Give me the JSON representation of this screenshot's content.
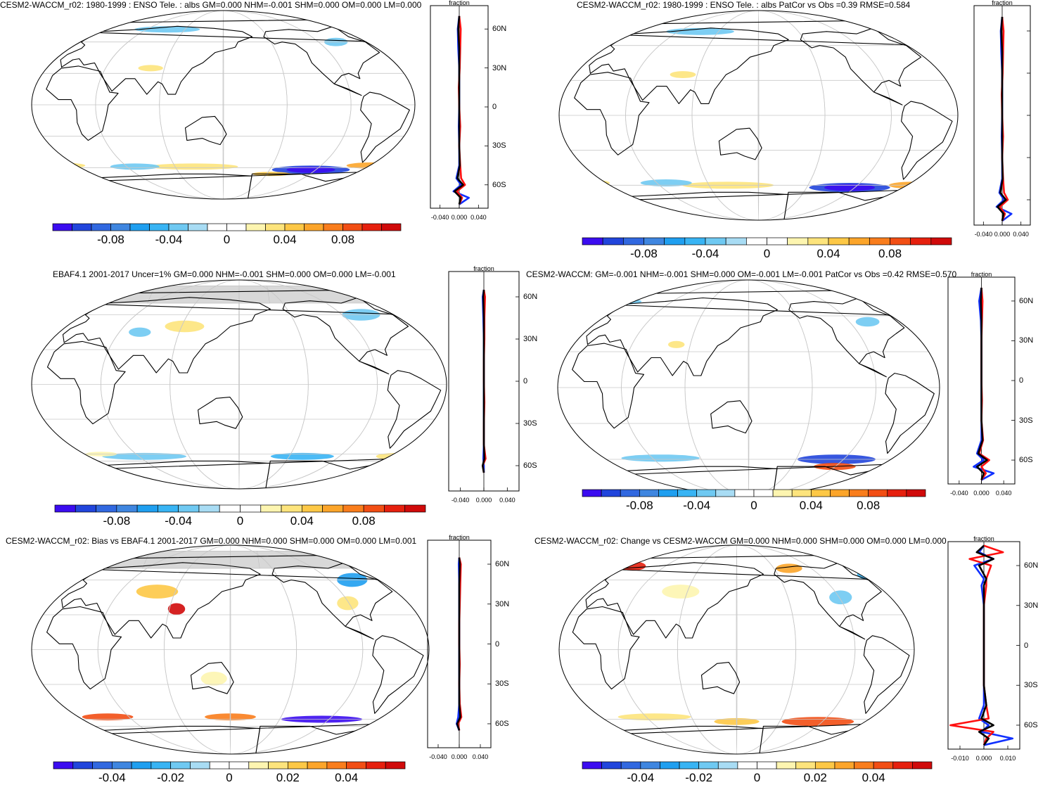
{
  "colors": {
    "palette": [
      "#3b0cf0",
      "#2145dc",
      "#3168e0",
      "#3f86e0",
      "#1f9ff0",
      "#38b4f4",
      "#6fc9f2",
      "#a8dcf4",
      "#ffffff",
      "#ffffff",
      "#fdf5b0",
      "#fde47c",
      "#fdc846",
      "#fca52a",
      "#f97d1c",
      "#f24e14",
      "#e6200e",
      "#d00a0a"
    ],
    "land_outline": "#000000",
    "graticule": "#c8c8c8",
    "mask_gray": "#d8d8d8",
    "line_black": "#000000",
    "line_red": "#ff1010",
    "line_blue": "#1030ff"
  },
  "panels": [
    {
      "id": "p1",
      "title": "CESM2-WACCM_r02: 1980-1999 : ENSO Tele. : albs GM=0.000 NHM=-0.001 SHM=0.000 OM=0.000 LM=0.000",
      "colorbar_labels": [
        "-0.08",
        "-0.04",
        "0",
        "0.04",
        "0.08"
      ],
      "zonal": {
        "title": "fraction",
        "xticks": [
          "-0.040",
          "0.000",
          "0.040"
        ],
        "lat_labels": [
          "60N",
          "30N",
          "0",
          "30S",
          "60S"
        ]
      }
    },
    {
      "id": "p2",
      "title": "CESM2-WACCM_r02: 1980-1999 : ENSO Tele. : albs PatCor vs Obs =0.39 RMSE=0.584",
      "colorbar_labels": [
        "-0.08",
        "-0.04",
        "0",
        "0.04",
        "0.08"
      ],
      "zonal": {
        "title": "fraction",
        "xticks": [
          "-0.040",
          "0.000",
          "0.040"
        ],
        "lat_labels": []
      }
    },
    {
      "id": "p3",
      "title": "EBAF4.1 2001-2017 Uncer=1% GM=0.000 NHM=-0.001 SHM=0.000 OM=0.000 LM=-0.001",
      "colorbar_labels": [
        "-0.08",
        "-0.04",
        "0",
        "0.04",
        "0.08"
      ],
      "zonal": {
        "title": "fraction",
        "xticks": [
          "-0.040",
          "0.000",
          "0.040"
        ],
        "lat_labels": [
          "60N",
          "30N",
          "0",
          "30S",
          "60S"
        ]
      }
    },
    {
      "id": "p4",
      "title": "CESM2-WACCM: GM=-0.001 NHM=-0.001 SHM=0.000 OM=-0.001 LM=-0.001 PatCor vs Obs =0.42 RMSE=0.570",
      "colorbar_labels": [
        "-0.08",
        "-0.04",
        "0",
        "0.04",
        "0.08"
      ],
      "zonal": {
        "title": "fraction",
        "xticks": [
          "-0.040",
          "0.000",
          "0.040"
        ],
        "lat_labels": [
          "60N",
          "30N",
          "0",
          "30S",
          "60S"
        ]
      }
    },
    {
      "id": "p5",
      "title": "CESM2-WACCM_r02: Bias vs EBAF4.1 2001-2017 GM=0.000 NHM=0.000 SHM=0.000 OM=0.000 LM=0.001",
      "colorbar_labels": [
        "-0.04",
        "-0.02",
        "0",
        "0.02",
        "0.04"
      ],
      "zonal": {
        "title": "fraction",
        "xticks": [
          "-0.040",
          "0.000",
          "0.040"
        ],
        "lat_labels": [
          "60N",
          "30N",
          "0",
          "30S",
          "60S"
        ]
      }
    },
    {
      "id": "p6",
      "title": "CESM2-WACCM_r02: Change vs CESM2-WACCM GM=0.000 NHM=0.000 SHM=0.000 OM=0.000 LM=0.000",
      "colorbar_labels": [
        "-0.04",
        "-0.02",
        "0",
        "0.02",
        "0.04"
      ],
      "zonal": {
        "title": "fraction",
        "xticks": [
          "-0.010",
          "0.000",
          "0.010"
        ],
        "lat_labels": [
          "60N",
          "30N",
          "0",
          "30S",
          "60S"
        ]
      }
    }
  ],
  "chart_data": [
    {
      "type": "heatmap",
      "title": "CESM2-WACCM_r02: 1980-1999 : ENSO Tele. : albs",
      "variable": "albs",
      "units": "fraction",
      "colorbar_range": [
        -0.1,
        0.1
      ],
      "colorbar_ticks": [
        -0.08,
        -0.04,
        0,
        0.04,
        0.08
      ],
      "anomalies": [
        {
          "lat": -62,
          "lon": -120,
          "value": -0.09
        },
        {
          "lat": -60,
          "lon": -60,
          "value": 0.04
        },
        {
          "lat": -58,
          "lon": 120,
          "value": 0.03
        },
        {
          "lat": 72,
          "lon": 90,
          "value": -0.03
        },
        {
          "lat": 35,
          "lon": 80,
          "value": 0.02
        },
        {
          "lat": 65,
          "lon": -30,
          "value": -0.02
        }
      ],
      "zonal_mean": {
        "xlim": [
          -0.06,
          0.06
        ],
        "lat": [
          70,
          60,
          45,
          30,
          15,
          0,
          -15,
          -30,
          -45,
          -55,
          -60,
          -65,
          -70,
          -75
        ],
        "black": [
          0.0,
          -0.002,
          0.0,
          0.0,
          0.0,
          0.0,
          0.0,
          0.0,
          0.001,
          -0.004,
          0.008,
          -0.01,
          0.003,
          0.0
        ],
        "red": [
          0.0,
          0.003,
          0.002,
          0.001,
          -0.001,
          0.0,
          0.002,
          0.0,
          0.002,
          0.004,
          0.012,
          -0.005,
          0.006,
          0.0
        ],
        "blue": [
          0.0,
          -0.003,
          -0.002,
          0.0,
          0.0,
          0.0,
          -0.001,
          0.0,
          0.0,
          -0.006,
          0.004,
          -0.012,
          0.02,
          0.0
        ]
      }
    },
    {
      "type": "heatmap",
      "title": "CESM2-WACCM_r02: 1980-1999 : ENSO Tele. : albs",
      "pattern_correlation": 0.39,
      "rmse": 0.584,
      "colorbar_range": [
        -0.1,
        0.1
      ],
      "colorbar_ticks": [
        -0.08,
        -0.04,
        0,
        0.04,
        0.08
      ],
      "anomalies": [
        {
          "lat": -62,
          "lon": -120,
          "value": -0.09
        },
        {
          "lat": -60,
          "lon": -60,
          "value": 0.04
        },
        {
          "lat": -58,
          "lon": 120,
          "value": 0.03
        },
        {
          "lat": 72,
          "lon": 90,
          "value": -0.03
        },
        {
          "lat": 35,
          "lon": 80,
          "value": 0.02
        }
      ],
      "zonal_mean": {
        "xlim": [
          -0.06,
          0.06
        ],
        "lat": [
          70,
          60,
          45,
          30,
          15,
          0,
          -15,
          -30,
          -45,
          -55,
          -60,
          -65,
          -70,
          -75
        ],
        "black": [
          0.0,
          -0.002,
          0.0,
          0.0,
          0.0,
          0.0,
          0.0,
          0.0,
          0.001,
          -0.004,
          0.008,
          -0.01,
          0.003,
          0.0
        ],
        "red": [
          0.0,
          0.003,
          0.002,
          0.001,
          -0.001,
          0.0,
          0.002,
          0.0,
          0.002,
          0.004,
          0.012,
          -0.005,
          0.006,
          0.0
        ],
        "blue": [
          0.0,
          -0.003,
          -0.002,
          0.0,
          0.0,
          0.0,
          -0.001,
          0.0,
          0.0,
          -0.006,
          0.004,
          -0.012,
          0.02,
          0.0
        ]
      }
    },
    {
      "type": "heatmap",
      "title": "EBAF4.1 2001-2017 Uncer=1%",
      "colorbar_range": [
        -0.1,
        0.1
      ],
      "colorbar_ticks": [
        -0.08,
        -0.04,
        0,
        0.04,
        0.08
      ],
      "anomalies": [
        {
          "lat": -62,
          "lon": -150,
          "value": -0.04
        },
        {
          "lat": -62,
          "lon": -60,
          "value": 0.03
        },
        {
          "lat": 60,
          "lon": -95,
          "value": -0.03
        },
        {
          "lat": 50,
          "lon": 100,
          "value": 0.02
        }
      ],
      "zonal_mean": {
        "xlim": [
          -0.06,
          0.06
        ],
        "lat": [
          65,
          60,
          45,
          30,
          15,
          0,
          -15,
          -30,
          -45,
          -55,
          -60,
          -65
        ],
        "black": [
          0.0,
          -0.001,
          0.0,
          0.0,
          0.0,
          0.0,
          0.0,
          0.0,
          0.0,
          0.001,
          -0.002,
          0.0
        ],
        "red": [
          0.0,
          0.002,
          0.001,
          0.001,
          0.0,
          0.0,
          0.001,
          0.0,
          0.0,
          0.003,
          -0.002,
          0.0
        ],
        "blue": [
          0.0,
          -0.002,
          -0.001,
          0.0,
          0.0,
          0.0,
          0.0,
          0.0,
          0.0,
          -0.001,
          0.0,
          0.0
        ]
      }
    },
    {
      "type": "heatmap",
      "title": "CESM2-WACCM",
      "pattern_correlation": 0.42,
      "rmse": 0.57,
      "colorbar_range": [
        -0.1,
        0.1
      ],
      "colorbar_ticks": [
        -0.08,
        -0.04,
        0,
        0.04,
        0.08
      ],
      "anomalies": [
        {
          "lat": -60,
          "lon": -120,
          "value": -0.08
        },
        {
          "lat": -66,
          "lon": -120,
          "value": 0.08
        },
        {
          "lat": -60,
          "lon": -30,
          "value": 0.03
        },
        {
          "lat": 72,
          "lon": 0,
          "value": -0.03
        }
      ],
      "zonal_mean": {
        "xlim": [
          -0.06,
          0.06
        ],
        "lat": [
          70,
          60,
          45,
          30,
          15,
          0,
          -15,
          -30,
          -45,
          -55,
          -60,
          -65,
          -70,
          -75
        ],
        "black": [
          0.0,
          -0.001,
          0.0,
          0.0,
          0.0,
          0.0,
          0.0,
          0.0,
          0.002,
          -0.006,
          0.01,
          -0.008,
          0.004,
          0.0
        ],
        "red": [
          0.0,
          0.002,
          0.001,
          0.0,
          0.0,
          0.0,
          0.001,
          0.0,
          0.003,
          -0.004,
          0.014,
          0.0,
          0.008,
          0.0
        ],
        "blue": [
          0.0,
          -0.004,
          -0.001,
          0.0,
          0.0,
          0.0,
          0.0,
          0.0,
          0.0,
          -0.008,
          0.004,
          -0.014,
          0.022,
          0.0
        ]
      }
    },
    {
      "type": "heatmap",
      "title": "CESM2-WACCM_r02: Bias vs EBAF4.1 2001-2017",
      "colorbar_range": [
        -0.05,
        0.05
      ],
      "colorbar_ticks": [
        -0.04,
        -0.02,
        0,
        0.02,
        0.04
      ],
      "anomalies": [
        {
          "lat": -60,
          "lon": -120,
          "value": -0.045
        },
        {
          "lat": -58,
          "lon": 30,
          "value": 0.04
        },
        {
          "lat": 35,
          "lon": 100,
          "value": 0.04
        },
        {
          "lat": 60,
          "lon": -90,
          "value": -0.03
        },
        {
          "lat": -25,
          "lon": 135,
          "value": 0.015
        }
      ],
      "zonal_mean": {
        "xlim": [
          -0.06,
          0.06
        ],
        "lat": [
          65,
          60,
          45,
          30,
          15,
          0,
          -15,
          -30,
          -45,
          -55,
          -60,
          -65
        ],
        "black": [
          0.0,
          0.001,
          0.0,
          0.0,
          0.0,
          0.0,
          0.0,
          0.0,
          0.0,
          0.002,
          -0.004,
          0.0
        ],
        "red": [
          0.0,
          0.003,
          0.002,
          0.001,
          0.0,
          0.0,
          0.001,
          0.0,
          0.001,
          0.004,
          -0.002,
          0.0
        ],
        "blue": [
          0.0,
          -0.001,
          0.0,
          0.0,
          0.0,
          0.0,
          0.0,
          0.0,
          0.0,
          -0.002,
          -0.005,
          0.0
        ]
      }
    },
    {
      "type": "heatmap",
      "title": "CESM2-WACCM_r02: Change vs CESM2-WACCM",
      "colorbar_range": [
        -0.05,
        0.05
      ],
      "colorbar_ticks": [
        -0.04,
        -0.02,
        0,
        0.02,
        0.04
      ],
      "anomalies": [
        {
          "lat": -62,
          "lon": -120,
          "value": 0.045
        },
        {
          "lat": -58,
          "lon": -30,
          "value": 0.03
        },
        {
          "lat": 72,
          "lon": 30,
          "value": 0.035
        },
        {
          "lat": 70,
          "lon": -150,
          "value": 0.03
        },
        {
          "lat": 65,
          "lon": -60,
          "value": -0.025
        }
      ],
      "zonal_mean": {
        "xlim": [
          -0.015,
          0.015
        ],
        "lat": [
          75,
          70,
          65,
          60,
          50,
          45,
          30,
          15,
          0,
          -15,
          -30,
          -45,
          -55,
          -60,
          -65,
          -70,
          -75
        ],
        "black": [
          0.0,
          -0.003,
          0.004,
          -0.002,
          0.001,
          0.0,
          0.0,
          0.0,
          0.0,
          0.0,
          0.0,
          0.001,
          -0.001,
          0.004,
          -0.002,
          0.002,
          0.0
        ],
        "red": [
          0.0,
          0.008,
          -0.006,
          0.003,
          0.001,
          0.001,
          0.0,
          0.0,
          0.0,
          0.0,
          0.0,
          0.001,
          0.002,
          -0.014,
          0.004,
          0.001,
          0.0
        ],
        "blue": [
          0.0,
          -0.002,
          0.004,
          -0.004,
          0.0,
          -0.001,
          0.0,
          0.0,
          0.0,
          0.0,
          0.0,
          0.0,
          -0.002,
          0.002,
          -0.001,
          0.012,
          0.0
        ]
      }
    }
  ]
}
